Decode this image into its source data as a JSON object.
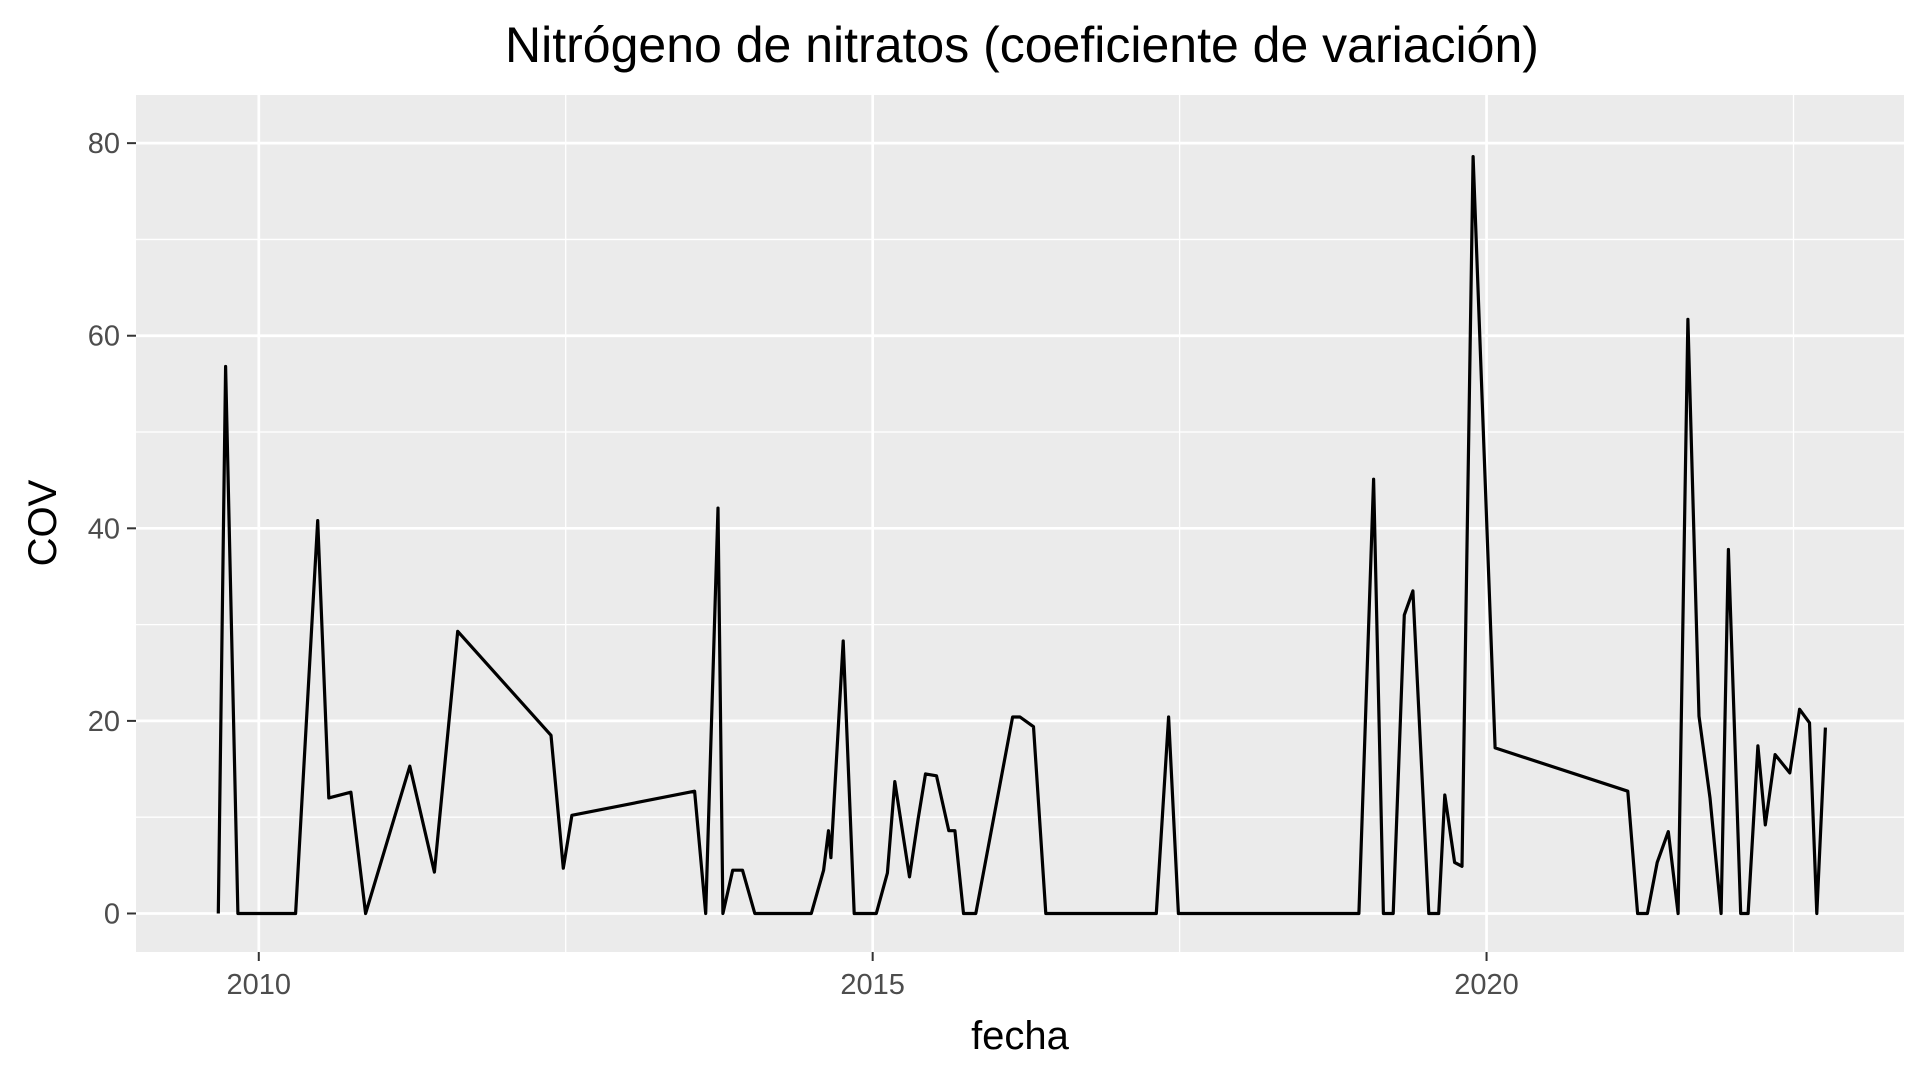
{
  "chart_data": {
    "type": "line",
    "title": "Nitrógeno de nitratos (coeficiente de variación)",
    "xlabel": "fecha",
    "ylabel": "COV",
    "xlim": [
      2009.0,
      2023.4
    ],
    "ylim": [
      -4,
      85
    ],
    "x_ticks": [
      2010,
      2015,
      2020
    ],
    "x_tick_labels": [
      "2010",
      "2015",
      "2020"
    ],
    "x_minor_ticks": [
      2012.5,
      2017.5,
      2022.5
    ],
    "y_ticks": [
      0,
      20,
      40,
      60,
      80
    ],
    "y_tick_labels": [
      "0",
      "20",
      "40",
      "60",
      "80"
    ],
    "y_minor_ticks": [
      10,
      30,
      50,
      70
    ],
    "grid": true,
    "panel_background": "#ebebeb",
    "grid_color": "#ffffff",
    "line_color": "#000000",
    "series": [
      {
        "x": [
          2009.67,
          2009.73,
          2009.83,
          2010.3,
          2010.48,
          2010.57,
          2010.75,
          2010.87,
          2011.23,
          2011.43,
          2011.62,
          2012.38,
          2012.48,
          2012.55,
          2013.55,
          2013.64,
          2013.74,
          2013.78,
          2013.86,
          2013.94,
          2014.04,
          2014.5,
          2014.6,
          2014.64,
          2014.66,
          2014.76,
          2014.85,
          2015.03,
          2015.12,
          2015.18,
          2015.3,
          2015.37,
          2015.43,
          2015.52,
          2015.62,
          2015.67,
          2015.74,
          2015.84,
          2016.14,
          2016.2,
          2016.31,
          2016.41,
          2017.31,
          2017.41,
          2017.49,
          2018.96,
          2019.08,
          2019.16,
          2019.24,
          2019.33,
          2019.4,
          2019.53,
          2019.61,
          2019.66,
          2019.74,
          2019.8,
          2019.89,
          2020.07,
          2021.15,
          2021.23,
          2021.31,
          2021.39,
          2021.48,
          2021.56,
          2021.64,
          2021.73,
          2021.82,
          2021.91,
          2021.97,
          2022.07,
          2022.13,
          2022.21,
          2022.27,
          2022.35,
          2022.47,
          2022.55,
          2022.63,
          2022.69,
          2022.76
        ],
        "y": [
          0,
          56.8,
          0,
          0,
          40.8,
          12,
          12.6,
          0,
          15.3,
          4.3,
          29.3,
          18.5,
          4.7,
          10.2,
          12.7,
          0,
          42.1,
          0,
          4.5,
          4.5,
          0,
          0,
          4.5,
          8.6,
          5.8,
          28.3,
          0,
          0,
          4.2,
          13.7,
          3.8,
          9.8,
          14.5,
          14.3,
          8.6,
          8.6,
          0,
          0,
          20.4,
          20.4,
          19.4,
          0,
          0,
          20.4,
          0,
          0,
          45.1,
          0,
          0,
          31,
          33.5,
          0,
          0,
          12.3,
          5.3,
          4.9,
          78.6,
          17.2,
          12.7,
          0,
          0,
          5.3,
          8.5,
          0,
          61.7,
          20.5,
          12,
          0,
          37.8,
          0,
          0,
          17.4,
          9.2,
          16.5,
          14.6,
          21.2,
          19.8,
          0,
          19.3
        ]
      }
    ]
  }
}
